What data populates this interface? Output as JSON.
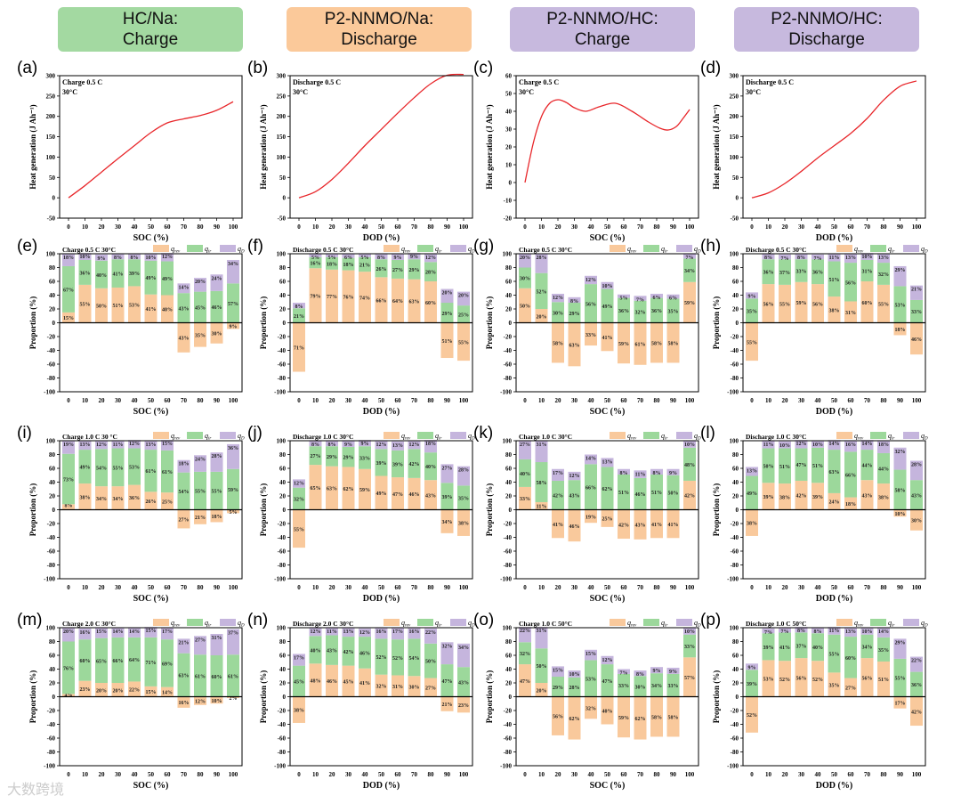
{
  "headers": [
    {
      "text": "HC/Na:\nCharge",
      "color": "#a3d9a1"
    },
    {
      "text": "P2-NNMO/Na:\nDischarge",
      "color": "#fbc99a"
    },
    {
      "text": "P2-NNMO/HC:\nCharge",
      "color": "#c7b9de"
    },
    {
      "text": "P2-NNMO/HC:\nDischarge",
      "color": "#c7b9de"
    }
  ],
  "colors": {
    "rev": "#f9c99c",
    "ir": "#9cd89b",
    "D": "#c5b5dd",
    "line": "#e8262a"
  },
  "legend": {
    "rev": "q",
    "rev_sub": "rev",
    "ir": "q",
    "ir_sub": "ir",
    "D": "q",
    "D_sub": "D"
  },
  "watermark": "大数跨境",
  "chart_data": [
    {
      "type": "line",
      "panel": "(a)",
      "title": "Charge 0.5 C",
      "temp": "30°C",
      "xlabel": "SOC (%)",
      "ylabel": "Heat generation (J Ah⁻¹)",
      "ylim": [
        -50,
        300
      ],
      "ystep": 50,
      "xlim": [
        0,
        100
      ],
      "points": [
        [
          0,
          0
        ],
        [
          10,
          30
        ],
        [
          20,
          63
        ],
        [
          30,
          96
        ],
        [
          40,
          128
        ],
        [
          50,
          160
        ],
        [
          60,
          184
        ],
        [
          70,
          194
        ],
        [
          80,
          202
        ],
        [
          90,
          215
        ],
        [
          100,
          236
        ]
      ]
    },
    {
      "type": "line",
      "panel": "(b)",
      "title": "Discharge 0.5 C",
      "temp": "30°C",
      "xlabel": "DOD (%)",
      "ylabel": "Heat generation (J Ah⁻¹)",
      "ylim": [
        -50,
        300
      ],
      "ystep": 50,
      "xlim": [
        0,
        100
      ],
      "points": [
        [
          0,
          0
        ],
        [
          10,
          15
        ],
        [
          20,
          45
        ],
        [
          30,
          85
        ],
        [
          40,
          128
        ],
        [
          50,
          168
        ],
        [
          60,
          208
        ],
        [
          70,
          246
        ],
        [
          80,
          280
        ],
        [
          90,
          301
        ],
        [
          100,
          303
        ]
      ]
    },
    {
      "type": "line",
      "panel": "(c)",
      "title": "Charge 0.5 C",
      "temp": "30°C",
      "xlabel": "SOC (%)",
      "ylabel": "Heat generation (J Ah⁻¹)",
      "ylim": [
        -20,
        60
      ],
      "ystep": 10,
      "xlim": [
        0,
        100
      ],
      "points": [
        [
          0,
          0
        ],
        [
          5,
          22
        ],
        [
          10,
          37
        ],
        [
          15,
          44.5
        ],
        [
          20,
          46.5
        ],
        [
          25,
          45
        ],
        [
          30,
          42
        ],
        [
          37,
          40
        ],
        [
          45,
          42.5
        ],
        [
          55,
          44.5
        ],
        [
          65,
          40
        ],
        [
          75,
          34
        ],
        [
          82,
          30.5
        ],
        [
          87,
          29.5
        ],
        [
          92,
          31.5
        ],
        [
          96,
          36
        ],
        [
          100,
          41
        ]
      ]
    },
    {
      "type": "line",
      "panel": "(d)",
      "title": "Discharge 0.5 C",
      "temp": "30°C",
      "xlabel": "DOD (%)",
      "ylabel": "Heat generation (J Ah⁻¹)",
      "ylim": [
        -50,
        300
      ],
      "ystep": 50,
      "xlim": [
        0,
        100
      ],
      "points": [
        [
          0,
          0
        ],
        [
          10,
          12
        ],
        [
          20,
          35
        ],
        [
          30,
          65
        ],
        [
          40,
          98
        ],
        [
          50,
          128
        ],
        [
          60,
          158
        ],
        [
          70,
          195
        ],
        [
          80,
          240
        ],
        [
          90,
          274
        ],
        [
          100,
          287
        ]
      ]
    },
    {
      "type": "bar",
      "panel": "(e)",
      "title": "Charge 0.5 C 30°C",
      "xlabel": "SOC (%)",
      "ylabel": "Proportion (%)",
      "ylim": [
        -100,
        100
      ],
      "categories": [
        0,
        10,
        20,
        30,
        40,
        50,
        60,
        70,
        80,
        90,
        100
      ],
      "series": [
        {
          "name": "q_rev",
          "values": [
            15,
            55,
            50,
            51,
            53,
            41,
            40,
            -43,
            -35,
            -30,
            -9
          ]
        },
        {
          "name": "q_ir",
          "values": [
            67,
            36,
            40,
            41,
            39,
            49,
            49,
            43,
            45,
            46,
            57
          ]
        },
        {
          "name": "q_D",
          "values": [
            18,
            10,
            9,
            8,
            8,
            10,
            12,
            14,
            20,
            24,
            34
          ]
        }
      ]
    },
    {
      "type": "bar",
      "panel": "(f)",
      "title": "Discharge 0.5 C 30°C",
      "xlabel": "DOD (%)",
      "ylabel": "Proportion (%)",
      "ylim": [
        -100,
        100
      ],
      "categories": [
        0,
        10,
        20,
        30,
        40,
        50,
        60,
        70,
        80,
        90,
        100
      ],
      "series": [
        {
          "name": "q_rev",
          "values": [
            -71,
            79,
            77,
            76,
            74,
            66,
            64,
            63,
            60,
            -51,
            -55
          ]
        },
        {
          "name": "q_ir",
          "values": [
            21,
            16,
            18,
            18,
            21,
            26,
            27,
            29,
            28,
            29,
            25
          ]
        },
        {
          "name": "q_D",
          "values": [
            8,
            5,
            5,
            6,
            5,
            8,
            9,
            9,
            12,
            20,
            20
          ]
        }
      ]
    },
    {
      "type": "bar",
      "panel": "(g)",
      "title": "Charge 0.5 C 30°C",
      "xlabel": "SOC (%)",
      "ylabel": "Proportion (%)",
      "ylim": [
        -100,
        100
      ],
      "categories": [
        0,
        10,
        20,
        30,
        40,
        50,
        60,
        70,
        80,
        90,
        100
      ],
      "series": [
        {
          "name": "q_rev",
          "values": [
            50,
            20,
            -58,
            -63,
            -33,
            -41,
            -59,
            -61,
            -58,
            -58,
            59
          ]
        },
        {
          "name": "q_ir",
          "values": [
            30,
            52,
            30,
            29,
            56,
            49,
            36,
            32,
            36,
            35,
            34
          ]
        },
        {
          "name": "q_D",
          "values": [
            20,
            28,
            12,
            8,
            12,
            10,
            5,
            7,
            6,
            6,
            7
          ]
        }
      ]
    },
    {
      "type": "bar",
      "panel": "(h)",
      "title": "Discharge 0.5 C 30°C",
      "xlabel": "DOD (%)",
      "ylabel": "Proportion (%)",
      "ylim": [
        -100,
        100
      ],
      "categories": [
        0,
        10,
        20,
        30,
        40,
        50,
        60,
        70,
        80,
        90,
        100
      ],
      "series": [
        {
          "name": "q_rev",
          "values": [
            -55,
            56,
            55,
            59,
            56,
            38,
            31,
            60,
            55,
            -18,
            -46
          ]
        },
        {
          "name": "q_ir",
          "values": [
            35,
            36,
            37,
            33,
            36,
            51,
            56,
            31,
            32,
            53,
            33
          ]
        },
        {
          "name": "q_D",
          "values": [
            9,
            8,
            7,
            8,
            7,
            11,
            13,
            10,
            13,
            29,
            21
          ]
        }
      ]
    },
    {
      "type": "bar",
      "panel": "(i)",
      "title": "Charge 1.0 C 30 °C",
      "xlabel": "SOC (%)",
      "ylabel": "Proportion (%)",
      "ylim": [
        -100,
        100
      ],
      "categories": [
        0,
        10,
        20,
        30,
        40,
        50,
        60,
        70,
        80,
        90,
        100
      ],
      "series": [
        {
          "name": "q_rev",
          "values": [
            8,
            38,
            34,
            34,
            36,
            26,
            25,
            -27,
            -21,
            -18,
            -5
          ]
        },
        {
          "name": "q_ir",
          "values": [
            73,
            49,
            54,
            55,
            53,
            61,
            61,
            54,
            55,
            55,
            59
          ]
        },
        {
          "name": "q_D",
          "values": [
            19,
            13,
            12,
            11,
            12,
            13,
            15,
            18,
            24,
            28,
            36
          ]
        }
      ]
    },
    {
      "type": "bar",
      "panel": "(j)",
      "title": "Discharge 1.0 C 30°C",
      "xlabel": "DOD (%)",
      "ylabel": "Proportion (%)",
      "ylim": [
        -100,
        100
      ],
      "categories": [
        0,
        10,
        20,
        30,
        40,
        50,
        60,
        70,
        80,
        90,
        100
      ],
      "series": [
        {
          "name": "q_rev",
          "values": [
            -55,
            65,
            63,
            62,
            59,
            49,
            47,
            46,
            43,
            -34,
            -38
          ]
        },
        {
          "name": "q_ir",
          "values": [
            32,
            27,
            29,
            29,
            33,
            39,
            39,
            42,
            40,
            39,
            35
          ]
        },
        {
          "name": "q_D",
          "values": [
            12,
            8,
            8,
            9,
            9,
            12,
            13,
            12,
            18,
            27,
            28
          ]
        }
      ]
    },
    {
      "type": "bar",
      "panel": "(k)",
      "title": "Charge 1.0 C 30°C",
      "xlabel": "SOC (%)",
      "ylabel": "Proportion (%)",
      "ylim": [
        -100,
        100
      ],
      "categories": [
        0,
        10,
        20,
        30,
        40,
        50,
        60,
        70,
        80,
        90,
        100
      ],
      "series": [
        {
          "name": "q_rev",
          "values": [
            33,
            11,
            -41,
            -46,
            -19,
            -25,
            -42,
            -43,
            -41,
            -41,
            42
          ]
        },
        {
          "name": "q_ir",
          "values": [
            40,
            58,
            42,
            43,
            66,
            62,
            51,
            46,
            51,
            50,
            48
          ]
        },
        {
          "name": "q_D",
          "values": [
            27,
            31,
            17,
            12,
            14,
            13,
            8,
            11,
            8,
            9,
            10
          ]
        }
      ]
    },
    {
      "type": "bar",
      "panel": "(l)",
      "title": "Discharge 1.0 C 30°C",
      "xlabel": "DOD (%)",
      "ylabel": "Proportion (%)",
      "ylim": [
        -100,
        100
      ],
      "categories": [
        0,
        10,
        20,
        30,
        40,
        50,
        60,
        70,
        80,
        90,
        100
      ],
      "series": [
        {
          "name": "q_rev",
          "values": [
            -38,
            39,
            38,
            42,
            39,
            24,
            18,
            43,
            38,
            -10,
            -30
          ]
        },
        {
          "name": "q_ir",
          "values": [
            49,
            50,
            51,
            47,
            51,
            63,
            66,
            44,
            44,
            58,
            43
          ]
        },
        {
          "name": "q_D",
          "values": [
            13,
            11,
            10,
            12,
            10,
            14,
            16,
            14,
            18,
            32,
            28
          ]
        }
      ]
    },
    {
      "type": "bar",
      "panel": "(m)",
      "title": "Charge 2.0 C 30°C",
      "xlabel": "SOC (%)",
      "ylabel": "Proportion (%)",
      "ylim": [
        -100,
        100
      ],
      "categories": [
        0,
        10,
        20,
        30,
        40,
        50,
        60,
        70,
        80,
        90,
        100
      ],
      "series": [
        {
          "name": "q_rev",
          "values": [
            4,
            23,
            20,
            20,
            22,
            15,
            14,
            -16,
            -12,
            -10,
            -2
          ]
        },
        {
          "name": "q_ir",
          "values": [
            76,
            60,
            65,
            66,
            64,
            71,
            69,
            63,
            61,
            60,
            61
          ]
        },
        {
          "name": "q_D",
          "values": [
            20,
            16,
            15,
            14,
            14,
            15,
            17,
            21,
            27,
            31,
            37
          ]
        }
      ]
    },
    {
      "type": "bar",
      "panel": "(n)",
      "title": "Discharge 2.0 C 30°C",
      "xlabel": "DOD (%)",
      "ylabel": "Proportion (%)",
      "ylim": [
        -100,
        100
      ],
      "categories": [
        0,
        10,
        20,
        30,
        40,
        50,
        60,
        70,
        80,
        90,
        100
      ],
      "series": [
        {
          "name": "q_rev",
          "values": [
            -38,
            48,
            46,
            45,
            41,
            32,
            31,
            30,
            27,
            -21,
            -23
          ]
        },
        {
          "name": "q_ir",
          "values": [
            45,
            40,
            43,
            42,
            46,
            52,
            52,
            54,
            50,
            47,
            43
          ]
        },
        {
          "name": "q_D",
          "values": [
            17,
            12,
            11,
            13,
            12,
            16,
            17,
            16,
            22,
            32,
            34
          ]
        }
      ]
    },
    {
      "type": "bar",
      "panel": "(o)",
      "title": "Charge 1.0 C 50°C",
      "xlabel": "SOC (%)",
      "ylabel": "Proportion (%)",
      "ylim": [
        -100,
        100
      ],
      "categories": [
        0,
        10,
        20,
        30,
        40,
        50,
        60,
        70,
        80,
        90,
        100
      ],
      "series": [
        {
          "name": "q_rev",
          "values": [
            47,
            20,
            -56,
            -62,
            -32,
            -40,
            -59,
            -62,
            -58,
            -58,
            57
          ]
        },
        {
          "name": "q_ir",
          "values": [
            32,
            50,
            29,
            28,
            53,
            47,
            33,
            30,
            34,
            33,
            33
          ]
        },
        {
          "name": "q_D",
          "values": [
            22,
            31,
            15,
            10,
            15,
            12,
            7,
            8,
            9,
            9,
            10
          ]
        }
      ]
    },
    {
      "type": "bar",
      "panel": "(p)",
      "title": "Discharge 1.0 C 50°C",
      "xlabel": "DOD (%)",
      "ylabel": "Proportion (%)",
      "ylim": [
        -100,
        100
      ],
      "categories": [
        0,
        10,
        20,
        30,
        40,
        50,
        60,
        70,
        80,
        90,
        100
      ],
      "series": [
        {
          "name": "q_rev",
          "values": [
            -52,
            53,
            52,
            56,
            52,
            35,
            27,
            56,
            51,
            -17,
            -42
          ]
        },
        {
          "name": "q_ir",
          "values": [
            39,
            39,
            41,
            37,
            40,
            55,
            60,
            34,
            35,
            55,
            36
          ]
        },
        {
          "name": "q_D",
          "values": [
            9,
            7,
            7,
            8,
            8,
            11,
            13,
            10,
            14,
            29,
            22
          ]
        }
      ]
    }
  ]
}
